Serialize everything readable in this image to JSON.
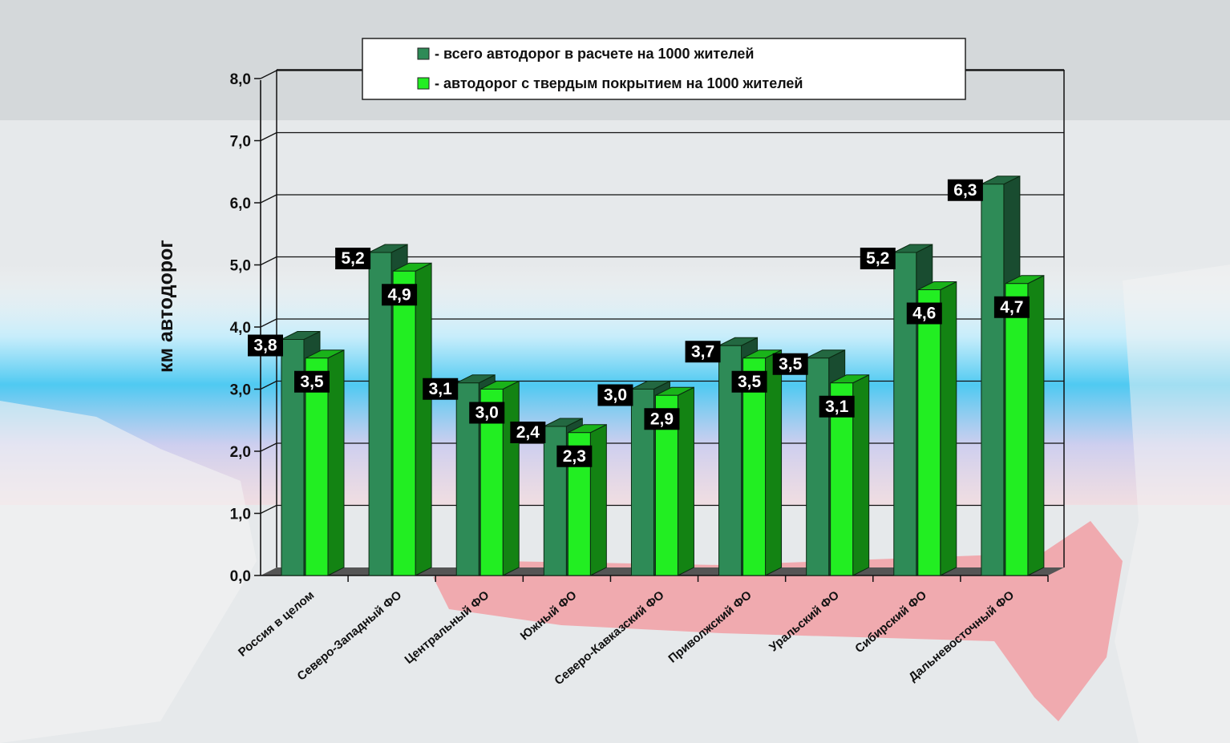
{
  "chart_data": {
    "type": "bar",
    "ylabel": "км автодорог",
    "ylim": [
      0,
      8
    ],
    "yticks": [
      "0,0",
      "1,0",
      "2,0",
      "3,0",
      "4,0",
      "5,0",
      "6,0",
      "7,0",
      "8,0"
    ],
    "grid": true,
    "legend_position": "top",
    "categories": [
      "Россия в целом",
      "Северо-Западный ФО",
      "Центральный ФО",
      "Южный ФО",
      "Северо-Кавказский ФО",
      "Приволжский ФО",
      "Уральский ФО",
      "Сибирский ФО",
      "Дальневосточный ФО"
    ],
    "series": [
      {
        "name": "- всего автодорог в расчете на 1000 жителей",
        "color": "#2e8b57",
        "values": [
          3.8,
          5.2,
          3.1,
          2.4,
          3.0,
          3.7,
          3.5,
          5.2,
          6.3
        ],
        "labels": [
          "3,8",
          "5,2",
          "3,1",
          "2,4",
          "3,0",
          "3,7",
          "3,5",
          "5,2",
          "6,3"
        ]
      },
      {
        "name": "- автодорог с твердым покрытием на 1000 жителей",
        "color": "#22ee22",
        "values": [
          3.5,
          4.9,
          3.0,
          2.3,
          2.9,
          3.5,
          3.1,
          4.6,
          4.7
        ],
        "labels": [
          "3,5",
          "4,9",
          "3,0",
          "2,3",
          "2,9",
          "3,5",
          "3,1",
          "4,6",
          "4,7"
        ]
      }
    ]
  }
}
